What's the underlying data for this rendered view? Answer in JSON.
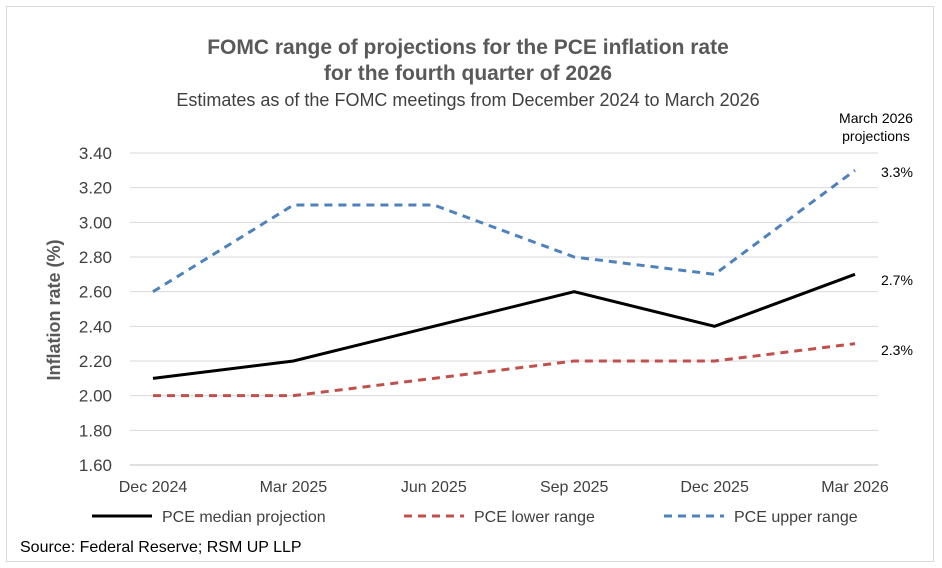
{
  "chart_data": {
    "type": "line",
    "title_line1": "FOMC range of projections for the PCE inflation rate",
    "title_line2": "for the fourth quarter of 2026",
    "subtitle": "Estimates as of the FOMC meetings from December 2024 to March 2026",
    "ylabel": "Inflation rate (%)",
    "xlabel": "",
    "ylim": [
      1.6,
      3.4
    ],
    "yticks": [
      "1.60",
      "1.80",
      "2.00",
      "2.20",
      "2.40",
      "2.60",
      "2.80",
      "3.00",
      "3.20",
      "3.40"
    ],
    "ytick_values": [
      1.6,
      1.8,
      2.0,
      2.2,
      2.4,
      2.6,
      2.8,
      3.0,
      3.2,
      3.4
    ],
    "categories": [
      "Dec 2024",
      "Mar 2025",
      "Jun 2025",
      "Sep 2025",
      "Dec 2025",
      "Mar 2026"
    ],
    "grid": true,
    "series": [
      {
        "name": "PCE median projection",
        "color": "#000000",
        "style": "solid",
        "values": [
          2.1,
          2.2,
          2.4,
          2.6,
          2.4,
          2.7
        ]
      },
      {
        "name": "PCE lower range",
        "color": "#c0504d",
        "style": "dashed",
        "values": [
          2.0,
          2.0,
          2.1,
          2.2,
          2.2,
          2.3
        ]
      },
      {
        "name": "PCE upper range",
        "color": "#4f81bd",
        "style": "dashed",
        "values": [
          2.6,
          3.1,
          3.1,
          2.8,
          2.7,
          3.3
        ]
      }
    ],
    "annotation_line1": "March 2026",
    "annotation_line2": "projections",
    "end_labels": {
      "upper": "3.3%",
      "median": "2.7%",
      "lower": "2.3%"
    }
  },
  "source": "Source: Federal Reserve; RSM UP LLP"
}
